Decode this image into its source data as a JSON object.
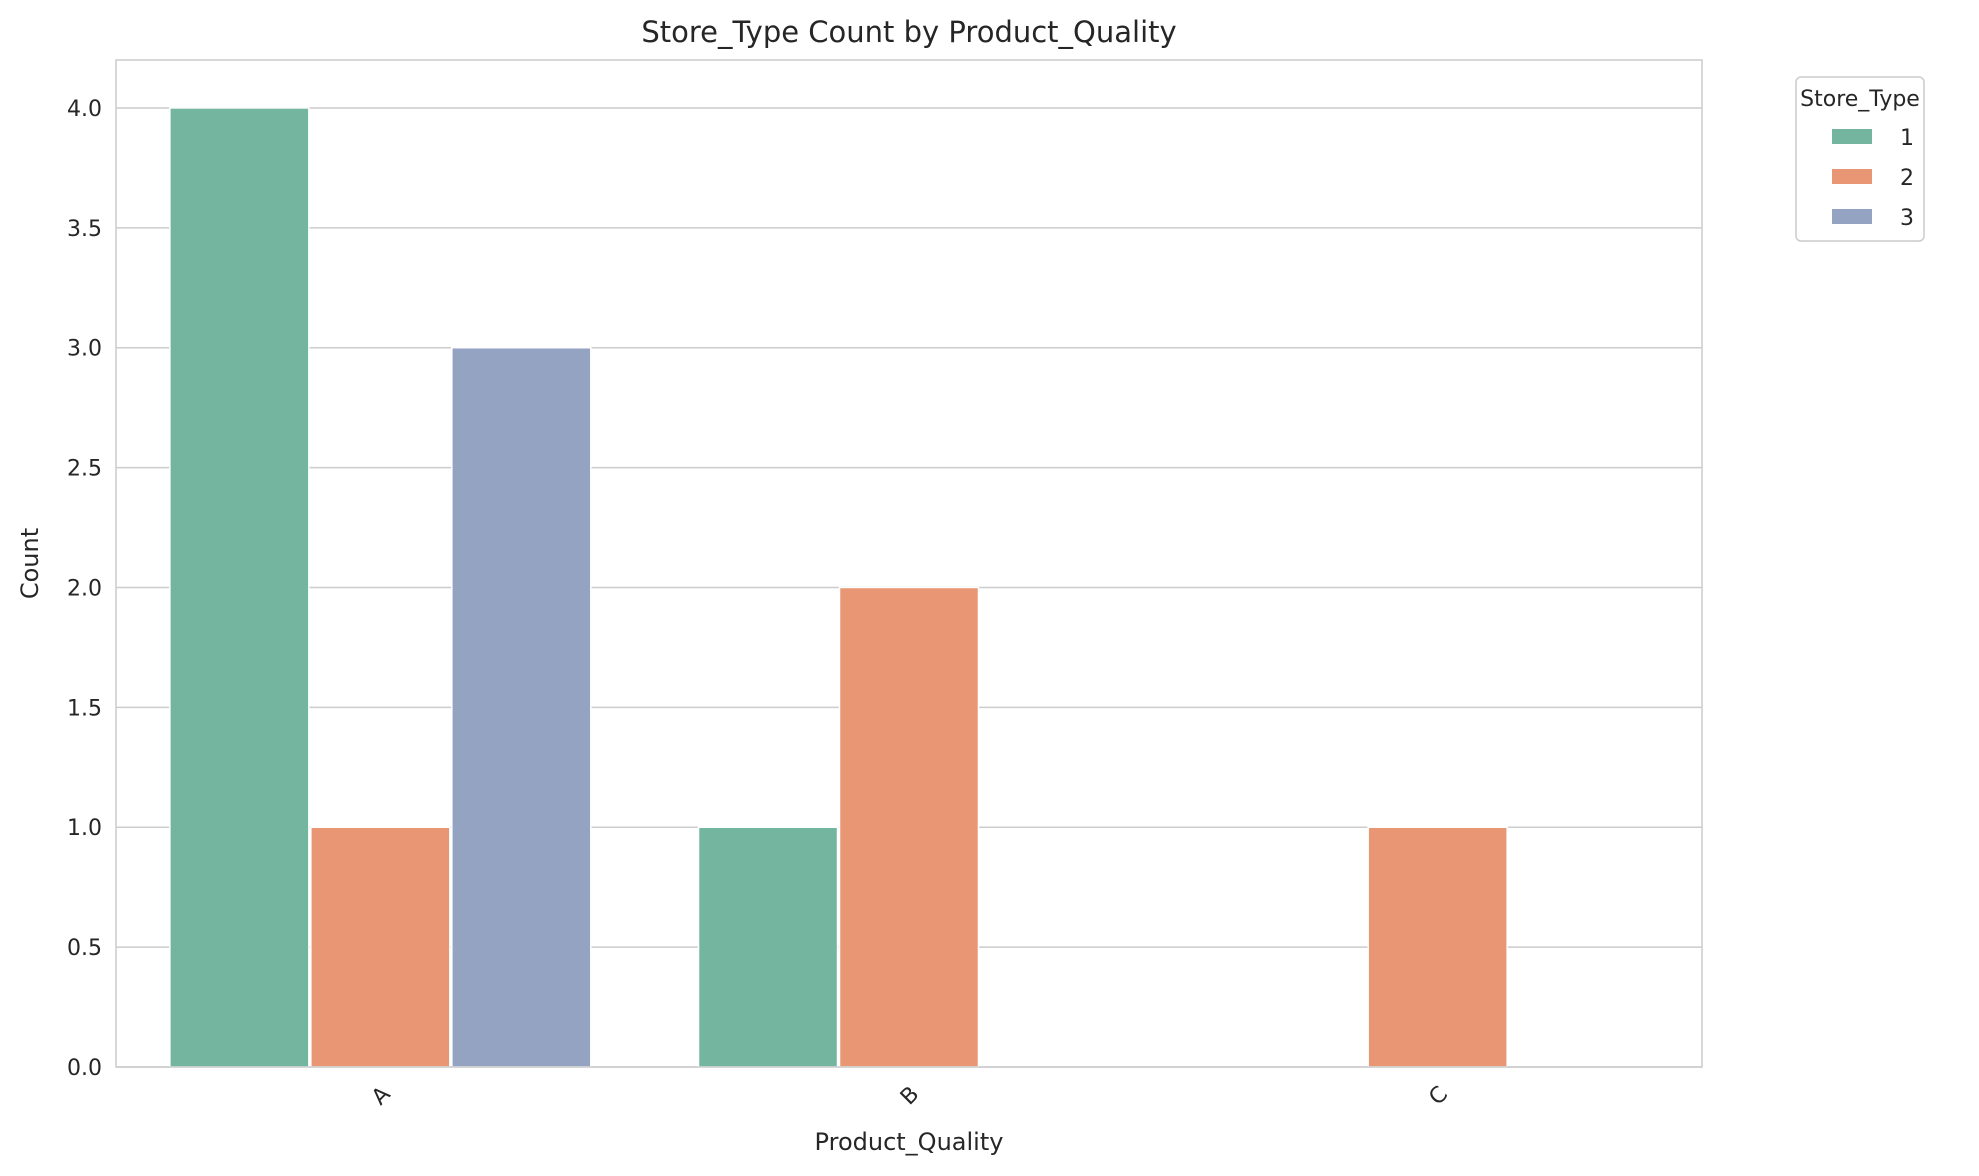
{
  "chart_data": {
    "type": "bar",
    "title": "Store_Type Count by Product_Quality",
    "xlabel": "Product_Quality",
    "ylabel": "Count",
    "categories": [
      "A",
      "B",
      "C"
    ],
    "series": [
      {
        "name": "1",
        "values": [
          4,
          1,
          0
        ],
        "color": "#73b59e"
      },
      {
        "name": "2",
        "values": [
          1,
          2,
          1
        ],
        "color": "#e89674"
      },
      {
        "name": "3",
        "values": [
          3,
          0,
          0
        ],
        "color": "#95a3c3"
      }
    ],
    "ylim": [
      0,
      4.2
    ],
    "yticks": [
      "0.0",
      "0.5",
      "1.0",
      "1.5",
      "2.0",
      "2.5",
      "3.0",
      "3.5",
      "4.0"
    ],
    "grid": true,
    "legend": {
      "title": "Store_Type",
      "placement": "outside-top-right"
    },
    "colors": {
      "grid": "#cccccc",
      "spine": "#cccccc",
      "text": "#262626"
    }
  }
}
